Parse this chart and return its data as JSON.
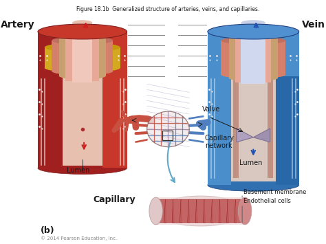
{
  "title": "Figure 18.1b  Generalized structure of arteries, veins, and capillaries.",
  "title_fontsize": 5.5,
  "labels": {
    "artery": "Artery",
    "vein": "Vein",
    "capillary": "Capillary",
    "capillary_network": "Capillary\nnetwork",
    "lumen_left": "Lumen",
    "lumen_right": "Lumen",
    "valve": "Valve",
    "basement_membrane": "Basement membrane",
    "endothelial_cells": "Endothelial cells",
    "b_label": "(b)",
    "copyright": "© 2014 Pearson Education, Inc."
  },
  "colors": {
    "artery_outer_red": "#c8382a",
    "artery_outer_dark": "#a02020",
    "artery_white_dots": "#e8e0d8",
    "artery_yellow": "#d4a820",
    "artery_salmon": "#d4806a",
    "artery_pink": "#e8a898",
    "artery_lumen": "#f0c8bc",
    "artery_inner_tube": "#e07878",
    "vein_outer_blue": "#3a7abf",
    "vein_outer_dark": "#1a4a80",
    "vein_dots": "#e0dcd8",
    "vein_salmon": "#d4806a",
    "vein_pink": "#e8a898",
    "vein_lumen": "#c8d8f0",
    "vein_blue_body": "#4a8fcc",
    "cap_red": "#c85040",
    "cap_blue": "#5080c0",
    "cap_mix": "#a080a0",
    "net_bg": "#e8d8d8",
    "text_dark": "#1a1a1a",
    "line_gray": "#666666",
    "capillary_outer": "#ecc8c8",
    "capillary_cells": "#c05050"
  },
  "font_bold": 10,
  "font_label": 7,
  "font_copy": 5
}
